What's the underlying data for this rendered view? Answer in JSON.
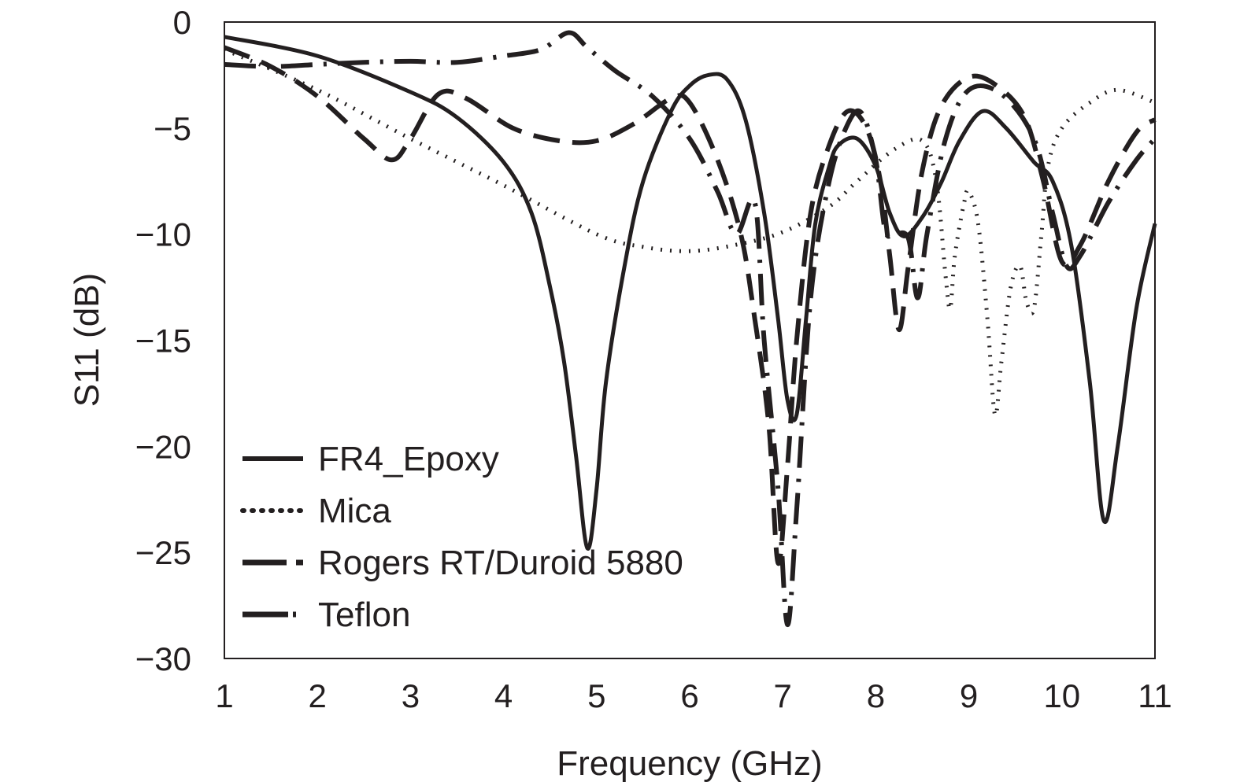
{
  "chart_data": {
    "type": "line",
    "xlabel": "Frequency (GHz)",
    "ylabel": "S11 (dB)",
    "xlim": [
      1,
      11
    ],
    "ylim": [
      -30,
      0
    ],
    "x_ticks": [
      1,
      2,
      3,
      4,
      5,
      6,
      7,
      8,
      9,
      10,
      11
    ],
    "y_ticks": [
      0,
      -5,
      -10,
      -15,
      -20,
      -25,
      -30
    ],
    "grid": false,
    "legend_position": "bottom-left",
    "line_color": "#231f20",
    "series": [
      {
        "name": "FR4_Epoxy",
        "style": "solid",
        "points": [
          [
            1,
            -0.7
          ],
          [
            2,
            -1.6
          ],
          [
            3,
            -3.3
          ],
          [
            3.5,
            -4.5
          ],
          [
            4,
            -6.6
          ],
          [
            4.3,
            -9
          ],
          [
            4.5,
            -12.5
          ],
          [
            4.65,
            -16
          ],
          [
            4.78,
            -20.5
          ],
          [
            4.9,
            -24.8
          ],
          [
            5.0,
            -22
          ],
          [
            5.1,
            -17
          ],
          [
            5.3,
            -11.5
          ],
          [
            5.5,
            -7.5
          ],
          [
            5.8,
            -4.2
          ],
          [
            6.0,
            -3.0
          ],
          [
            6.2,
            -2.5
          ],
          [
            6.4,
            -2.7
          ],
          [
            6.6,
            -4.6
          ],
          [
            6.8,
            -9
          ],
          [
            6.95,
            -14
          ],
          [
            7.05,
            -17.8
          ],
          [
            7.15,
            -18.5
          ],
          [
            7.25,
            -14
          ],
          [
            7.35,
            -9.5
          ],
          [
            7.5,
            -6.8
          ],
          [
            7.6,
            -5.8
          ],
          [
            7.8,
            -5.5
          ],
          [
            8.0,
            -6.8
          ],
          [
            8.15,
            -9.0
          ],
          [
            8.3,
            -10.1
          ],
          [
            8.5,
            -9.2
          ],
          [
            8.7,
            -7.6
          ],
          [
            8.9,
            -5.6
          ],
          [
            9.15,
            -4.2
          ],
          [
            9.4,
            -5.0
          ],
          [
            9.7,
            -6.6
          ],
          [
            9.9,
            -7.5
          ],
          [
            10.1,
            -10.5
          ],
          [
            10.3,
            -17
          ],
          [
            10.45,
            -23.5
          ],
          [
            10.6,
            -20
          ],
          [
            10.8,
            -13.5
          ],
          [
            11,
            -9.5
          ]
        ]
      },
      {
        "name": "Mica",
        "style": "dotted",
        "points": [
          [
            1,
            -1.3
          ],
          [
            2,
            -3.2
          ],
          [
            3,
            -5.5
          ],
          [
            4,
            -7.7
          ],
          [
            5,
            -10.0
          ],
          [
            5.5,
            -10.6
          ],
          [
            6,
            -10.8
          ],
          [
            6.5,
            -10.5
          ],
          [
            7,
            -9.9
          ],
          [
            7.5,
            -8.7
          ],
          [
            7.8,
            -7.5
          ],
          [
            8.2,
            -6.0
          ],
          [
            8.5,
            -5.6
          ],
          [
            8.65,
            -7.5
          ],
          [
            8.75,
            -12.0
          ],
          [
            8.8,
            -13.5
          ],
          [
            8.85,
            -11
          ],
          [
            8.95,
            -8.5
          ],
          [
            9.0,
            -8.0
          ],
          [
            9.1,
            -9.5
          ],
          [
            9.2,
            -14
          ],
          [
            9.28,
            -18.5
          ],
          [
            9.35,
            -16
          ],
          [
            9.45,
            -12.5
          ],
          [
            9.55,
            -11.5
          ],
          [
            9.62,
            -13.2
          ],
          [
            9.7,
            -13.5
          ],
          [
            9.78,
            -10
          ],
          [
            9.85,
            -6.8
          ],
          [
            10.0,
            -5.0
          ],
          [
            10.3,
            -3.8
          ],
          [
            10.6,
            -3.2
          ],
          [
            11,
            -3.8
          ]
        ]
      },
      {
        "name": "Rogers RT/Duroid 5880",
        "style": "dashed",
        "points": [
          [
            1,
            -1.2
          ],
          [
            1.5,
            -2.1
          ],
          [
            2,
            -3.5
          ],
          [
            2.5,
            -5.5
          ],
          [
            2.8,
            -6.5
          ],
          [
            3,
            -5.5
          ],
          [
            3.3,
            -3.4
          ],
          [
            3.6,
            -3.6
          ],
          [
            4.1,
            -5.0
          ],
          [
            4.6,
            -5.6
          ],
          [
            5.0,
            -5.6
          ],
          [
            5.4,
            -4.8
          ],
          [
            5.8,
            -3.6
          ],
          [
            6.0,
            -3.8
          ],
          [
            6.3,
            -6.5
          ],
          [
            6.55,
            -10
          ],
          [
            6.7,
            -14
          ],
          [
            6.85,
            -19
          ],
          [
            6.95,
            -25.5
          ],
          [
            7.05,
            -21
          ],
          [
            7.15,
            -15
          ],
          [
            7.3,
            -9
          ],
          [
            7.5,
            -5.8
          ],
          [
            7.7,
            -4.2
          ],
          [
            7.9,
            -5.0
          ],
          [
            8.05,
            -7.5
          ],
          [
            8.15,
            -11
          ],
          [
            8.25,
            -14.5
          ],
          [
            8.35,
            -11.5
          ],
          [
            8.5,
            -7
          ],
          [
            8.7,
            -4.0
          ],
          [
            9.0,
            -2.6
          ],
          [
            9.3,
            -3.0
          ],
          [
            9.6,
            -4.5
          ],
          [
            9.8,
            -7.5
          ],
          [
            10.0,
            -11.3
          ],
          [
            10.2,
            -10.5
          ],
          [
            10.5,
            -7.5
          ],
          [
            10.8,
            -5.2
          ],
          [
            11,
            -4.6
          ]
        ]
      },
      {
        "name": "Teflon",
        "style": "dashdot",
        "points": [
          [
            1,
            -2.0
          ],
          [
            1.5,
            -2.1
          ],
          [
            2,
            -2.0
          ],
          [
            2.5,
            -1.9
          ],
          [
            3,
            -1.85
          ],
          [
            3.5,
            -1.9
          ],
          [
            4,
            -1.6
          ],
          [
            4.4,
            -1.3
          ],
          [
            4.7,
            -0.5
          ],
          [
            4.9,
            -1.2
          ],
          [
            5.2,
            -2.3
          ],
          [
            5.6,
            -3.5
          ],
          [
            6.0,
            -5.5
          ],
          [
            6.3,
            -8
          ],
          [
            6.5,
            -10
          ],
          [
            6.7,
            -8.5
          ],
          [
            6.8,
            -15
          ],
          [
            6.95,
            -22
          ],
          [
            7.05,
            -28.4
          ],
          [
            7.15,
            -23
          ],
          [
            7.3,
            -13
          ],
          [
            7.5,
            -7.5
          ],
          [
            7.7,
            -4.8
          ],
          [
            7.85,
            -4.3
          ],
          [
            8.0,
            -6.5
          ],
          [
            8.1,
            -9.8
          ],
          [
            8.2,
            -10.0
          ],
          [
            8.35,
            -10.2
          ],
          [
            8.45,
            -13.0
          ],
          [
            8.55,
            -10
          ],
          [
            8.75,
            -5.5
          ],
          [
            9.0,
            -3.2
          ],
          [
            9.35,
            -3.4
          ],
          [
            9.7,
            -5.5
          ],
          [
            9.9,
            -9
          ],
          [
            10.05,
            -11.5
          ],
          [
            10.2,
            -11.0
          ],
          [
            10.5,
            -8.5
          ],
          [
            10.8,
            -6.5
          ],
          [
            11,
            -5.5
          ]
        ]
      }
    ]
  }
}
